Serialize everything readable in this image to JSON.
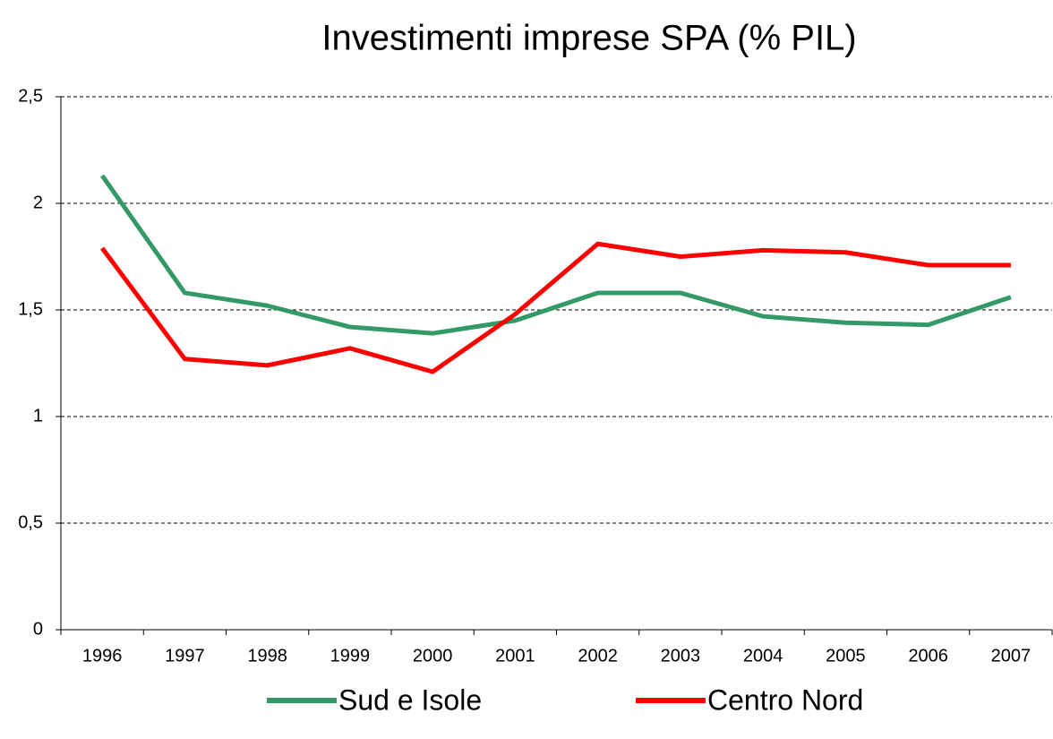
{
  "chart_data": {
    "type": "line",
    "title": "Investimenti imprese SPA (% PIL)",
    "categories": [
      "1996",
      "1997",
      "1998",
      "1999",
      "2000",
      "2001",
      "2002",
      "2003",
      "2004",
      "2005",
      "2006",
      "2007"
    ],
    "series": [
      {
        "name": "Sud e Isole",
        "color": "#339966",
        "values": [
          2.13,
          1.58,
          1.52,
          1.42,
          1.39,
          1.45,
          1.58,
          1.58,
          1.47,
          1.44,
          1.43,
          1.56
        ]
      },
      {
        "name": "Centro Nord",
        "color": "#ff0000",
        "values": [
          1.79,
          1.27,
          1.24,
          1.32,
          1.21,
          1.48,
          1.81,
          1.75,
          1.78,
          1.77,
          1.71,
          1.71
        ]
      }
    ],
    "ylim": [
      0,
      2.5
    ],
    "yticks": [
      0,
      {
        "value": 0.5,
        "label": "0,5"
      },
      1,
      {
        "value": 1.5,
        "label": "1,5"
      },
      2,
      {
        "value": 2.5,
        "label": "2,5"
      }
    ],
    "grid": true,
    "legend": "bottom"
  }
}
